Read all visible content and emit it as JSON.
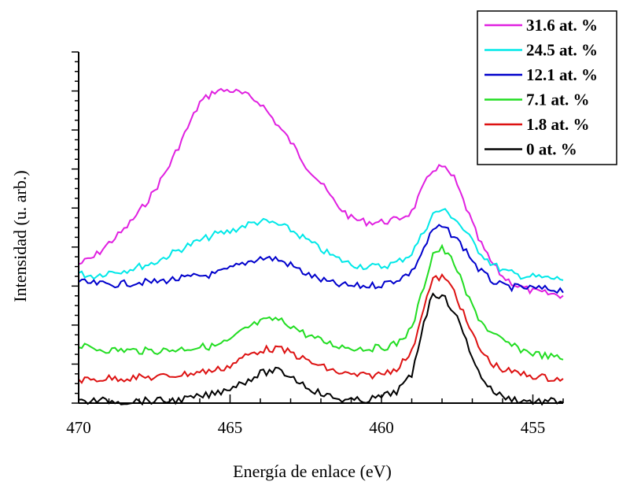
{
  "chart_data": {
    "type": "line",
    "xlabel": "Energía de enlace (eV)",
    "ylabel": "Intensidad (u. arb.)",
    "xlim": [
      470,
      454
    ],
    "ylim": [
      0,
      450
    ],
    "x_ticks": [
      {
        "value": 470,
        "label": "470"
      },
      {
        "value": 465,
        "label": "465"
      },
      {
        "value": 460,
        "label": "460"
      },
      {
        "value": 455,
        "label": "455"
      }
    ],
    "y_tick_labels_shown": false,
    "grid": false,
    "legend_position": "top-right",
    "series": [
      {
        "name": "31.6 at. %",
        "color": "#e020e0",
        "points": [
          [
            470,
            178
          ],
          [
            469.5,
            187
          ],
          [
            469,
            205
          ],
          [
            468.5,
            222
          ],
          [
            468,
            245
          ],
          [
            467.5,
            272
          ],
          [
            467,
            305
          ],
          [
            466.5,
            345
          ],
          [
            466,
            385
          ],
          [
            465.5,
            400
          ],
          [
            465,
            401
          ],
          [
            464.5,
            395
          ],
          [
            464,
            385
          ],
          [
            463.5,
            360
          ],
          [
            463,
            335
          ],
          [
            462.5,
            305
          ],
          [
            462,
            282
          ],
          [
            461.5,
            255
          ],
          [
            461,
            237
          ],
          [
            460.5,
            232
          ],
          [
            460,
            232
          ],
          [
            459.5,
            235
          ],
          [
            459,
            245
          ],
          [
            458.6,
            278
          ],
          [
            458.3,
            300
          ],
          [
            458,
            303
          ],
          [
            457.6,
            288
          ],
          [
            457.2,
            250
          ],
          [
            456.8,
            210
          ],
          [
            456.4,
            182
          ],
          [
            456,
            162
          ],
          [
            455.5,
            150
          ],
          [
            455,
            143
          ],
          [
            454.5,
            140
          ],
          [
            454,
            138
          ]
        ]
      },
      {
        "name": "24.5 at. %",
        "color": "#00e8e8",
        "points": [
          [
            470,
            166
          ],
          [
            469.5,
            163
          ],
          [
            469,
            168
          ],
          [
            468.5,
            170
          ],
          [
            468,
            175
          ],
          [
            467.5,
            180
          ],
          [
            467,
            190
          ],
          [
            466.5,
            200
          ],
          [
            466,
            208
          ],
          [
            465.5,
            216
          ],
          [
            465,
            220
          ],
          [
            464.5,
            228
          ],
          [
            464,
            233
          ],
          [
            463.5,
            230
          ],
          [
            463,
            222
          ],
          [
            462.5,
            210
          ],
          [
            462,
            197
          ],
          [
            461.5,
            186
          ],
          [
            461,
            178
          ],
          [
            460.5,
            175
          ],
          [
            460,
            175
          ],
          [
            459.5,
            180
          ],
          [
            459,
            192
          ],
          [
            458.6,
            220
          ],
          [
            458.3,
            242
          ],
          [
            458,
            248
          ],
          [
            457.6,
            238
          ],
          [
            457.2,
            218
          ],
          [
            456.8,
            196
          ],
          [
            456.4,
            180
          ],
          [
            456,
            170
          ],
          [
            455.5,
            164
          ],
          [
            455,
            162
          ],
          [
            454.5,
            160
          ],
          [
            454,
            159
          ]
        ]
      },
      {
        "name": "12.1 at. %",
        "color": "#0000cc",
        "points": [
          [
            470,
            155
          ],
          [
            469.5,
            153
          ],
          [
            469,
            152
          ],
          [
            468.5,
            153
          ],
          [
            468,
            155
          ],
          [
            467.5,
            155
          ],
          [
            467,
            158
          ],
          [
            466.5,
            160
          ],
          [
            466,
            163
          ],
          [
            465.5,
            165
          ],
          [
            465,
            172
          ],
          [
            464.5,
            180
          ],
          [
            464,
            186
          ],
          [
            463.5,
            185
          ],
          [
            463,
            177
          ],
          [
            462.5,
            166
          ],
          [
            462,
            158
          ],
          [
            461.5,
            152
          ],
          [
            461,
            150
          ],
          [
            460.5,
            150
          ],
          [
            460,
            152
          ],
          [
            459.5,
            158
          ],
          [
            459,
            168
          ],
          [
            458.6,
            198
          ],
          [
            458.3,
            222
          ],
          [
            458,
            226
          ],
          [
            457.6,
            214
          ],
          [
            457.2,
            195
          ],
          [
            456.8,
            172
          ],
          [
            456.4,
            158
          ],
          [
            456,
            150
          ],
          [
            455.5,
            148
          ],
          [
            455,
            147
          ],
          [
            454.5,
            146
          ],
          [
            454,
            145
          ]
        ]
      },
      {
        "name": "7.1 at. %",
        "color": "#22dd22",
        "points": [
          [
            470,
            73
          ],
          [
            469.5,
            70
          ],
          [
            469,
            68
          ],
          [
            468.5,
            68
          ],
          [
            468,
            67
          ],
          [
            467.5,
            67
          ],
          [
            467,
            68
          ],
          [
            466.5,
            70
          ],
          [
            466,
            72
          ],
          [
            465.5,
            73
          ],
          [
            465,
            80
          ],
          [
            464.5,
            95
          ],
          [
            464,
            104
          ],
          [
            463.5,
            108
          ],
          [
            463,
            100
          ],
          [
            462.5,
            88
          ],
          [
            462,
            80
          ],
          [
            461.5,
            74
          ],
          [
            461,
            71
          ],
          [
            460.5,
            70
          ],
          [
            460,
            71
          ],
          [
            459.5,
            76
          ],
          [
            459,
            95
          ],
          [
            458.6,
            150
          ],
          [
            458.3,
            192
          ],
          [
            458,
            198
          ],
          [
            457.6,
            180
          ],
          [
            457.2,
            140
          ],
          [
            456.8,
            110
          ],
          [
            456.4,
            90
          ],
          [
            456,
            80
          ],
          [
            455.5,
            70
          ],
          [
            455,
            64
          ],
          [
            454.5,
            60
          ],
          [
            454,
            57
          ]
        ]
      },
      {
        "name": "1.8 at. %",
        "color": "#dd1111",
        "points": [
          [
            470,
            30
          ],
          [
            469.5,
            30
          ],
          [
            469,
            32
          ],
          [
            468.5,
            32
          ],
          [
            468,
            33
          ],
          [
            467.5,
            33
          ],
          [
            467,
            35
          ],
          [
            466.5,
            37
          ],
          [
            466,
            40
          ],
          [
            465.5,
            42
          ],
          [
            465,
            48
          ],
          [
            464.5,
            60
          ],
          [
            464,
            68
          ],
          [
            463.5,
            70
          ],
          [
            463,
            65
          ],
          [
            462.5,
            55
          ],
          [
            462,
            47
          ],
          [
            461.5,
            40
          ],
          [
            461,
            36
          ],
          [
            460.5,
            35
          ],
          [
            460,
            37
          ],
          [
            459.5,
            45
          ],
          [
            459,
            65
          ],
          [
            458.6,
            125
          ],
          [
            458.3,
            158
          ],
          [
            458,
            162
          ],
          [
            457.6,
            145
          ],
          [
            457.2,
            105
          ],
          [
            456.8,
            72
          ],
          [
            456.4,
            52
          ],
          [
            456,
            43
          ],
          [
            455.5,
            38
          ],
          [
            455,
            35
          ],
          [
            454.5,
            32
          ],
          [
            454,
            31
          ]
        ]
      },
      {
        "name": "0 at. %",
        "color": "#000000",
        "points": [
          [
            470,
            2
          ],
          [
            469.5,
            3
          ],
          [
            469,
            3
          ],
          [
            468.5,
            2
          ],
          [
            468,
            3
          ],
          [
            467.5,
            3
          ],
          [
            467,
            3
          ],
          [
            466.5,
            5
          ],
          [
            466,
            8
          ],
          [
            465.5,
            12
          ],
          [
            465,
            20
          ],
          [
            464.5,
            28
          ],
          [
            464,
            38
          ],
          [
            463.5,
            42
          ],
          [
            463,
            35
          ],
          [
            462.5,
            22
          ],
          [
            462,
            12
          ],
          [
            461.5,
            6
          ],
          [
            461,
            3
          ],
          [
            460.5,
            4
          ],
          [
            460,
            8
          ],
          [
            459.5,
            15
          ],
          [
            459,
            35
          ],
          [
            458.6,
            105
          ],
          [
            458.3,
            140
          ],
          [
            458,
            138
          ],
          [
            457.6,
            118
          ],
          [
            457.2,
            80
          ],
          [
            456.8,
            40
          ],
          [
            456.4,
            18
          ],
          [
            456,
            8
          ],
          [
            455.5,
            4
          ],
          [
            455,
            2
          ],
          [
            454.5,
            2
          ],
          [
            454,
            3
          ]
        ]
      }
    ]
  }
}
